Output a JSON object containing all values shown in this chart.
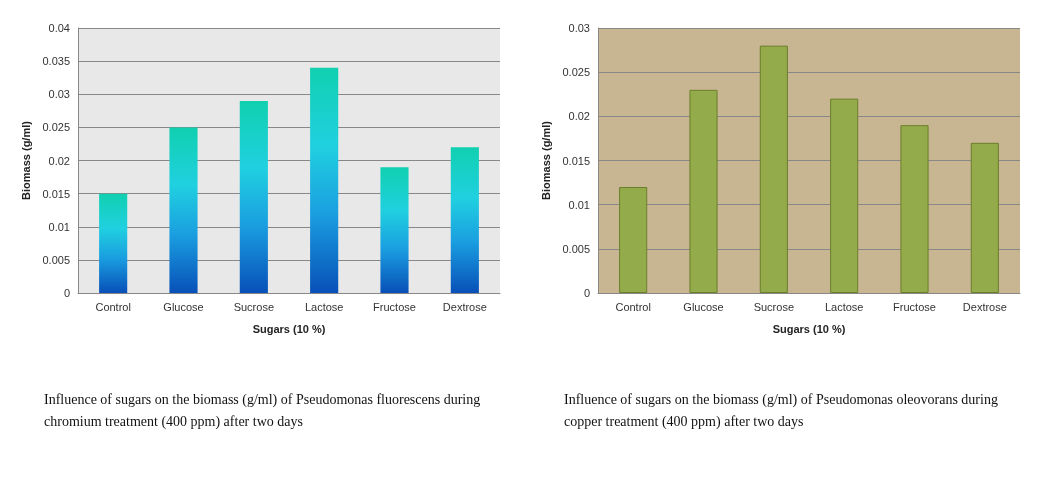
{
  "chart_data": [
    {
      "type": "bar",
      "categories": [
        "Control",
        "Glucose",
        "Sucrose",
        "Lactose",
        "Fructose",
        "Dextrose"
      ],
      "values": [
        0.015,
        0.025,
        0.029,
        0.034,
        0.019,
        0.022
      ],
      "color": "#1a9ee0",
      "xlabel": "Sugars (10 %)",
      "ylabel": "Biomass (g/ml)",
      "ylim": [
        0,
        0.04
      ],
      "yticks": [
        0,
        0.005,
        0.01,
        0.015,
        0.02,
        0.025,
        0.03,
        0.035,
        0.04
      ],
      "grid": "y",
      "annotations": [
        "Influence of sugars on the biomass (g/ml) of Pseudomonas fluorescens during chromium treatment (400 ppm) after two days"
      ]
    },
    {
      "type": "bar",
      "categories": [
        "Control",
        "Glucose",
        "Sucrose",
        "Lactose",
        "Fructose",
        "Dextrose"
      ],
      "values": [
        0.012,
        0.023,
        0.028,
        0.022,
        0.019,
        0.017
      ],
      "color": "#93ab4a",
      "xlabel": "Sugars (10 %)",
      "ylabel": "Biomass (g/ml)",
      "ylim": [
        0,
        0.03
      ],
      "yticks": [
        0,
        0.005,
        0.01,
        0.015,
        0.02,
        0.025,
        0.03
      ],
      "grid": "y",
      "annotations": [
        "Influence of sugars on the biomass (g/ml) of Pseudomonas oleovorans during copper treatment (400 ppm) after two days"
      ]
    }
  ]
}
